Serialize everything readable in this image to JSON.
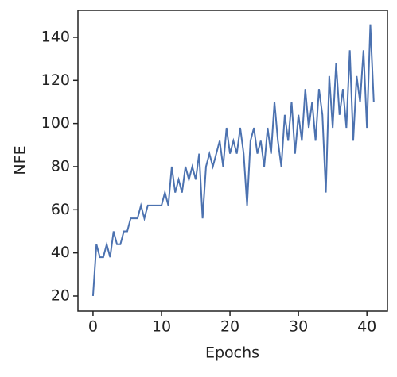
{
  "chart_data": {
    "type": "line",
    "xlabel": "Epochs",
    "ylabel": "NFE",
    "x": [
      0,
      0.5,
      1,
      1.5,
      2,
      2.5,
      3,
      3.5,
      4,
      4.5,
      5,
      5.5,
      6,
      6.5,
      7,
      7.5,
      8,
      8.5,
      9,
      9.5,
      10,
      10.5,
      11,
      11.5,
      12,
      12.5,
      13,
      13.5,
      14,
      14.5,
      15,
      15.5,
      16,
      16.5,
      17,
      17.5,
      18,
      18.5,
      19,
      19.5,
      20,
      20.5,
      21,
      21.5,
      22,
      22.5,
      23,
      23.5,
      24,
      24.5,
      25,
      25.5,
      26,
      26.5,
      27,
      27.5,
      28,
      28.5,
      29,
      29.5,
      30,
      30.5,
      31,
      31.5,
      32,
      32.5,
      33,
      33.5,
      34,
      34.5,
      35,
      35.5,
      36,
      36.5,
      37,
      37.5,
      38,
      38.5,
      39,
      39.5,
      40,
      40.5,
      41
    ],
    "series": [
      {
        "color": "#4c72b0",
        "values": [
          20,
          44,
          38,
          38,
          44,
          38,
          50,
          44,
          44,
          50,
          50,
          56,
          56,
          56,
          62,
          56,
          62,
          62,
          62,
          62,
          62,
          68,
          62,
          80,
          68,
          74,
          68,
          80,
          74,
          80,
          74,
          86,
          56,
          80,
          86,
          80,
          86,
          92,
          80,
          98,
          86,
          92,
          86,
          98,
          86,
          62,
          92,
          98,
          86,
          92,
          80,
          98,
          86,
          110,
          92,
          80,
          104,
          92,
          110,
          86,
          104,
          92,
          116,
          98,
          110,
          92,
          116,
          104,
          68,
          122,
          98,
          128,
          104,
          116,
          98,
          134,
          92,
          122,
          110,
          134,
          98,
          146,
          110
        ]
      }
    ],
    "xlim": [
      -2.2,
      43.0
    ],
    "ylim": [
      13.0,
      152.5
    ],
    "xticks": [
      0,
      10,
      20,
      30,
      40
    ],
    "yticks": [
      20,
      40,
      60,
      80,
      100,
      120,
      140
    ],
    "grid": false
  }
}
